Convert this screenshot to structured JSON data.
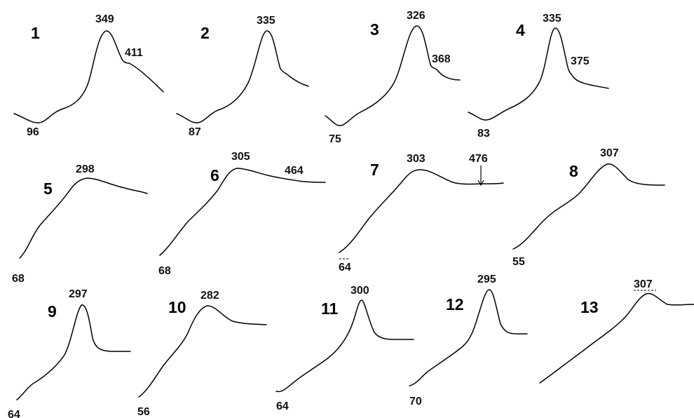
{
  "panels": [
    {
      "id": "1",
      "labels": [
        "349",
        "411",
        "96"
      ]
    },
    {
      "id": "2",
      "labels": [
        "335",
        "87"
      ]
    },
    {
      "id": "3",
      "labels": [
        "326",
        "368",
        "75"
      ]
    },
    {
      "id": "4",
      "labels": [
        "335",
        "375",
        "83"
      ]
    },
    {
      "id": "5",
      "labels": [
        "298",
        "68"
      ]
    },
    {
      "id": "6",
      "labels": [
        "305",
        "464",
        "68"
      ]
    },
    {
      "id": "7",
      "labels": [
        "303",
        "476",
        "64"
      ]
    },
    {
      "id": "8",
      "labels": [
        "307",
        "55"
      ]
    },
    {
      "id": "9",
      "labels": [
        "297",
        "64"
      ]
    },
    {
      "id": "10",
      "labels": [
        "282",
        "56"
      ]
    },
    {
      "id": "11",
      "labels": [
        "300",
        "64"
      ]
    },
    {
      "id": "12",
      "labels": [
        "295",
        "70"
      ]
    },
    {
      "id": "13",
      "labels": [
        "307"
      ]
    }
  ]
}
